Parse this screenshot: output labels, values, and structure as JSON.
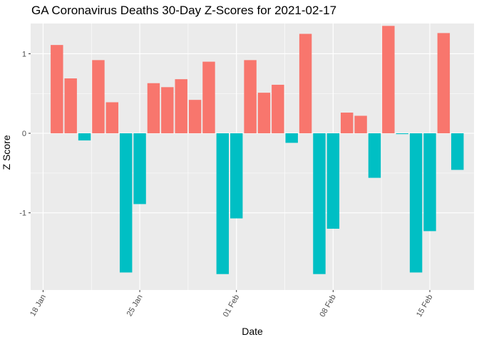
{
  "chart_data": {
    "type": "bar",
    "title": "GA Coronavirus Deaths 30-Day Z-Scores for 2021-02-17",
    "xlabel": "Date",
    "ylabel": "Z Score",
    "ylim": [
      -1.97,
      1.38
    ],
    "yticks": [
      -1,
      0,
      1
    ],
    "xticks": [
      {
        "label": "18 Jan",
        "day": 18
      },
      {
        "label": "25 Jan",
        "day": 25
      },
      {
        "label": "01 Feb",
        "day": 32
      },
      {
        "label": "08 Feb",
        "day": 39
      },
      {
        "label": "15 Feb",
        "day": 46
      }
    ],
    "xlim_day": [
      17.1,
      49.2
    ],
    "positive_color": "#F8766D",
    "negative_color": "#00BFC4",
    "panel_color": "#EBEBEB",
    "grid_color": "#FFFFFF",
    "series": [
      {
        "name": "Z Score",
        "start_day": 19,
        "values": [
          1.11,
          0.69,
          -0.09,
          0.92,
          0.39,
          -1.75,
          -0.89,
          0.63,
          0.58,
          0.68,
          0.42,
          0.9,
          -1.77,
          -1.07,
          0.92,
          0.51,
          0.61,
          -0.12,
          1.25,
          -1.77,
          -1.2,
          0.26,
          0.22,
          -0.56,
          1.35,
          -0.01,
          -1.75,
          -1.23,
          1.26,
          -0.46
        ]
      }
    ]
  }
}
